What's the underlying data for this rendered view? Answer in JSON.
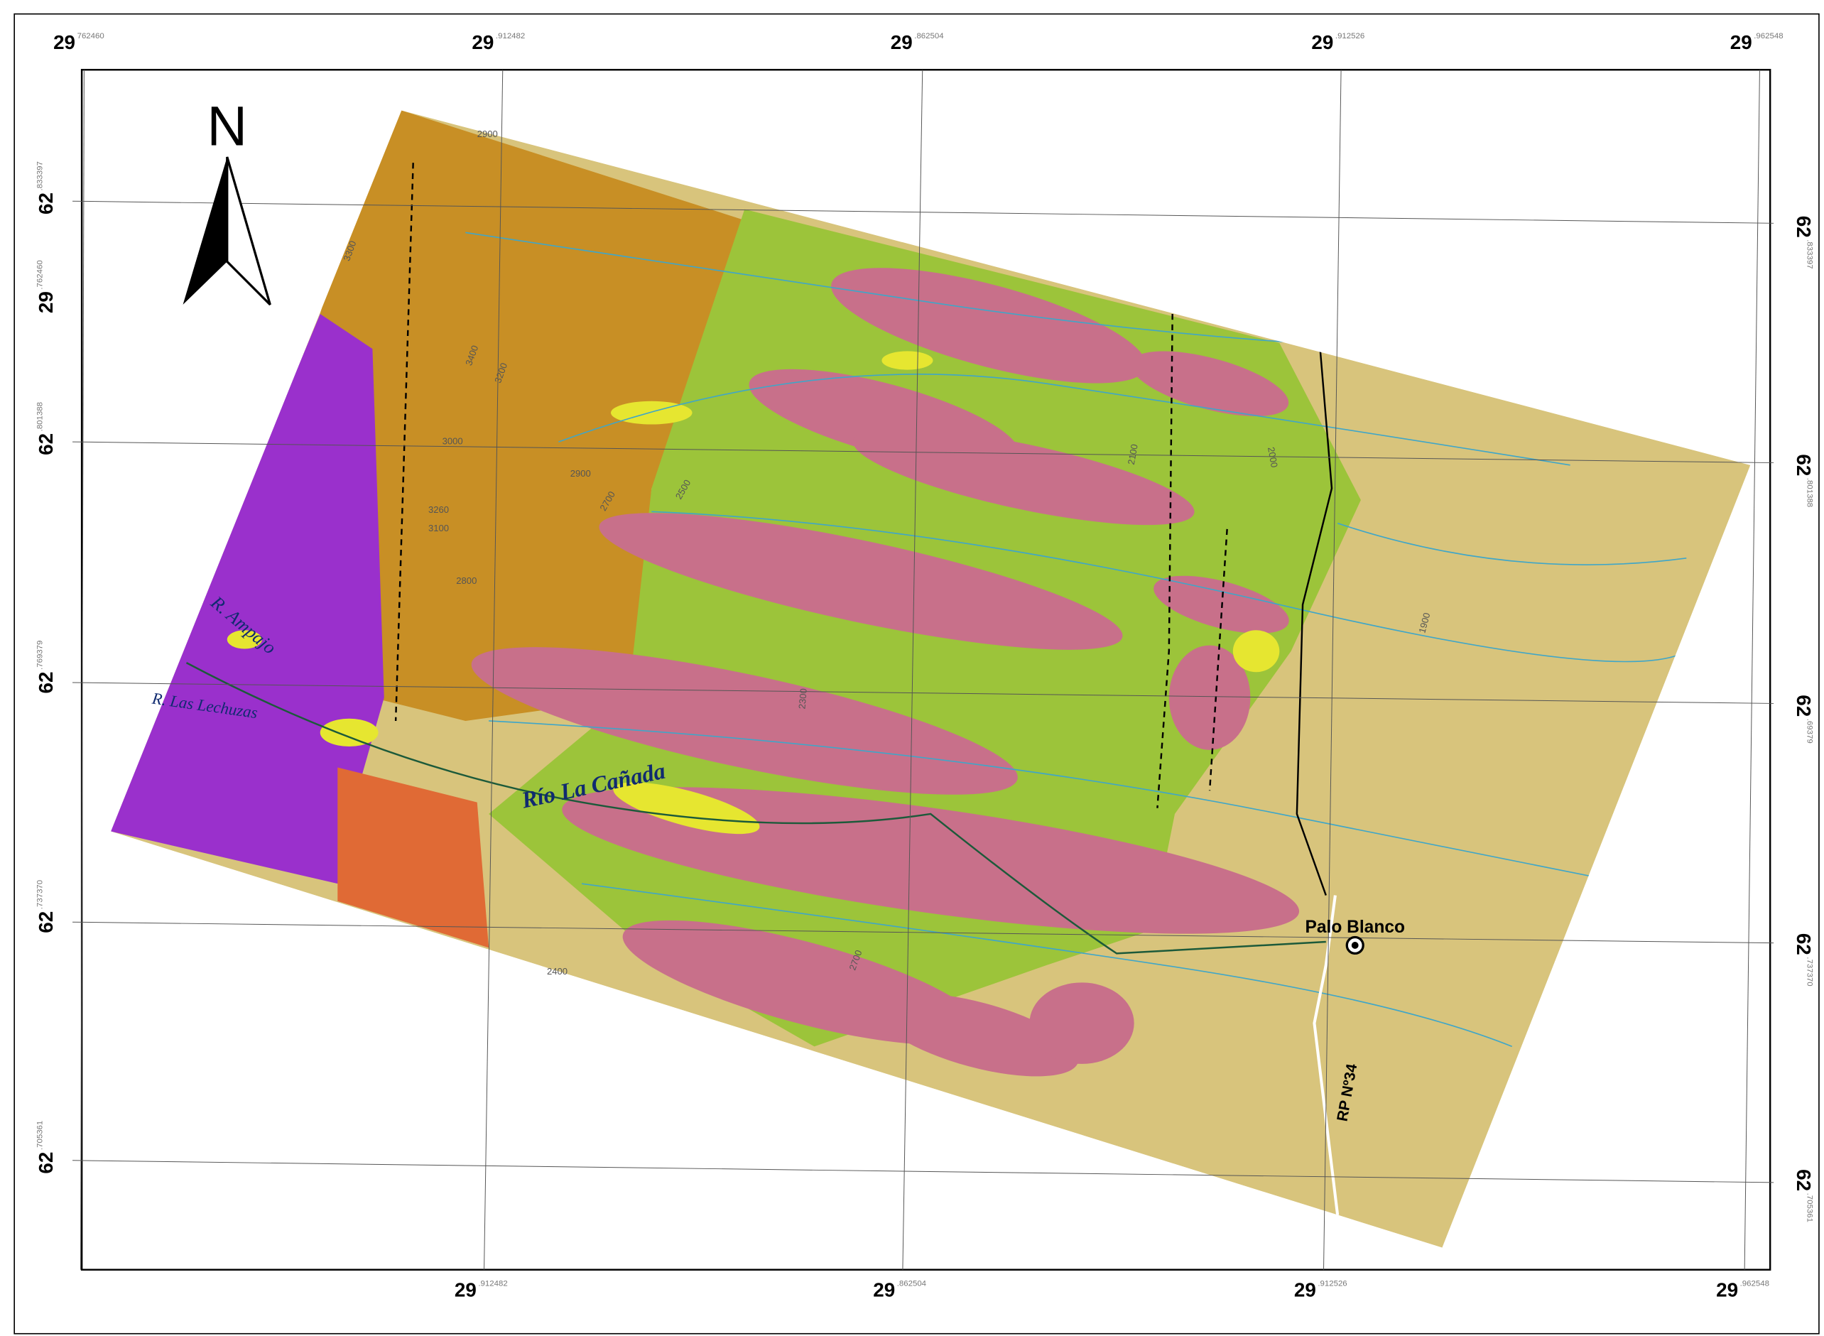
{
  "north_arrow": "N",
  "graticule": {
    "top": [
      {
        "deg": "29",
        "min": "762460"
      },
      {
        "deg": "29",
        "min": ".912482"
      },
      {
        "deg": "29",
        "min": ".862504"
      },
      {
        "deg": "29",
        "min": ".912526"
      },
      {
        "deg": "29",
        "min": ".962548"
      }
    ],
    "bottom": [
      {
        "deg": "29",
        "min": ".912482"
      },
      {
        "deg": "29",
        "min": ".862504"
      },
      {
        "deg": "29",
        "min": ".912526"
      },
      {
        "deg": "29",
        "min": ".962548"
      }
    ],
    "left": [
      {
        "deg": "62",
        "min": ".833397"
      },
      {
        "deg": "29",
        "min": ".762460"
      },
      {
        "deg": "62",
        "min": ".801388"
      },
      {
        "deg": "62",
        "min": ".769379"
      },
      {
        "deg": "62",
        "min": ".737370"
      },
      {
        "deg": "62",
        "min": ".705361"
      }
    ],
    "right": [
      {
        "deg": "62",
        "min": ".833397"
      },
      {
        "deg": "62",
        "min": ".801388"
      },
      {
        "deg": "62",
        "min": ".69379"
      },
      {
        "deg": "62",
        "min": ".737370"
      },
      {
        "deg": "62",
        "min": ".705361"
      }
    ]
  },
  "labels": {
    "rivers": [
      "R. Ampajo",
      "R. Las Lechuzas",
      "Río La Cañada"
    ],
    "town": "Palo Blanco",
    "road": "RP Nº34"
  },
  "contours": [
    "2900",
    "3300",
    "3400",
    "3200",
    "3000",
    "2900",
    "2700",
    "2500",
    "3260",
    "3100",
    "2800",
    "2300",
    "2700",
    "2400",
    "2000",
    "1900",
    "2100"
  ]
}
